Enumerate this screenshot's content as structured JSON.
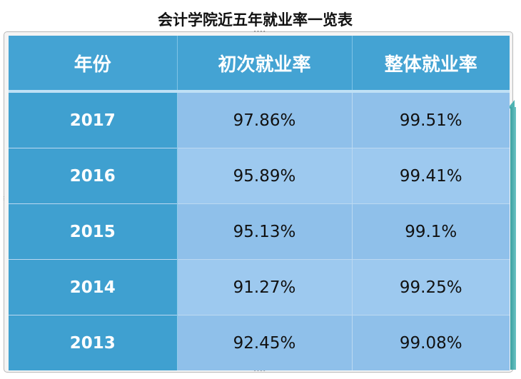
{
  "title": "会计学院近五年就业率一览表",
  "table": {
    "headers": [
      "年份",
      "初次就业率",
      "整体就业率"
    ],
    "rows": [
      [
        "2017",
        "97.86%",
        "99.51%"
      ],
      [
        "2016",
        "95.89%",
        "99.41%"
      ],
      [
        "2015",
        "95.13%",
        "99.1%"
      ],
      [
        "2014",
        "91.27%",
        "99.25%"
      ],
      [
        "2013",
        "92.45%",
        "99.08%"
      ]
    ]
  },
  "colors": {
    "header_bg": "#44a3d3",
    "year_col_bg": "#3fa0d0",
    "cell_bg_light": "#9dc9ef",
    "cell_bg": "#8fc0ea",
    "accent": "#4fb3b3"
  }
}
